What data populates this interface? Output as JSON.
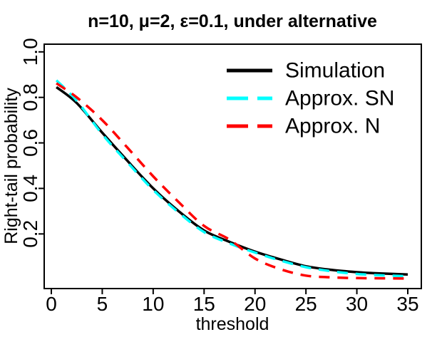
{
  "figure": {
    "background": "#ffffff",
    "foreground": "#000000"
  },
  "chart_data": {
    "type": "line",
    "title": "n=10, μ=2, ε=0.1, under alternative",
    "xlabel": "threshold",
    "ylabel": "Right-tail probability",
    "xlim": [
      0,
      35
    ],
    "ylim": [
      0,
      1.0
    ],
    "xticks": [
      0,
      5,
      10,
      15,
      20,
      25,
      30,
      35
    ],
    "yticks": [
      0.2,
      0.4,
      0.6,
      0.8,
      1.0
    ],
    "grid": false,
    "legend_position": "top-right",
    "x": [
      0.5,
      2.5,
      5,
      7.5,
      10,
      12.5,
      15,
      17.5,
      20,
      22.5,
      25,
      27.5,
      30,
      32.5,
      35
    ],
    "series": [
      {
        "name": "Simulation",
        "color": "#000000",
        "style": "solid",
        "values": [
          0.845,
          0.775,
          0.645,
          0.52,
          0.4,
          0.3,
          0.215,
          0.165,
          0.122,
          0.088,
          0.058,
          0.042,
          0.032,
          0.026,
          0.022
        ]
      },
      {
        "name": "Approx. SN",
        "color": "#00ffff",
        "style": "dashed",
        "values": [
          0.875,
          0.785,
          0.638,
          0.513,
          0.393,
          0.294,
          0.208,
          0.158,
          0.118,
          0.083,
          0.054,
          0.036,
          0.024,
          0.018,
          0.014
        ]
      },
      {
        "name": "Approx. N",
        "color": "#ff0000",
        "style": "dashed",
        "values": [
          0.862,
          0.8,
          0.7,
          0.578,
          0.453,
          0.34,
          0.235,
          0.175,
          0.092,
          0.045,
          0.017,
          0.009,
          0.006,
          0.005,
          0.004
        ]
      }
    ]
  }
}
